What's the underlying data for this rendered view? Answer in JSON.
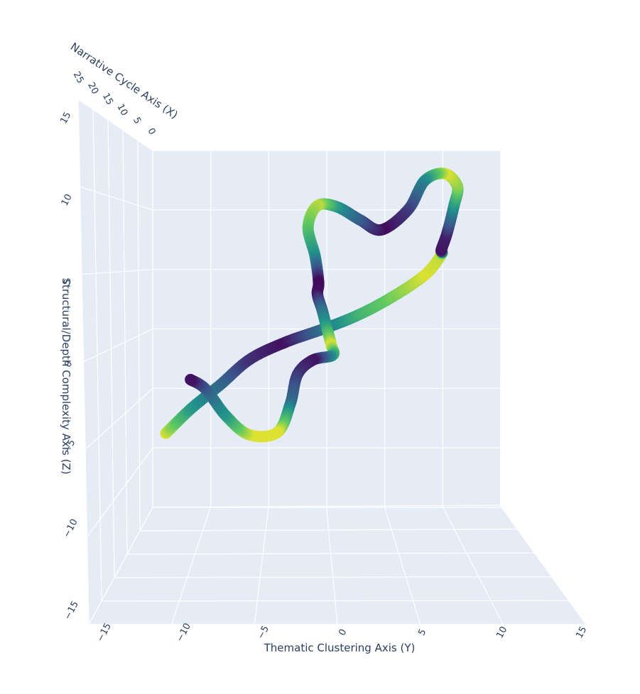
{
  "chart_data": {
    "type": "scatter3d",
    "title": "",
    "axes": {
      "x": {
        "label": "Narrative Cycle Axis (X)",
        "ticks": [
          "0",
          "5",
          "10",
          "15",
          "20",
          "25"
        ],
        "range": [
          0,
          25
        ]
      },
      "y": {
        "label": "Thematic Clustering Axis (Y)",
        "ticks": [
          "−15",
          "−10",
          "−5",
          "0",
          "5",
          "10",
          "15"
        ],
        "range": [
          -15,
          15
        ]
      },
      "z": {
        "label": "Structural/Depth Complexity Axis (Z)",
        "ticks": [
          "−15",
          "−10",
          "−5",
          "0",
          "5",
          "10",
          "15"
        ],
        "range": [
          -15,
          15
        ]
      }
    },
    "background_color": "#e5ecf6",
    "grid": true,
    "colorscale": "Viridis",
    "colors": {
      "viridis": [
        "#440154",
        "#3b528b",
        "#21918c",
        "#5ec962",
        "#fde725"
      ]
    },
    "series": [
      {
        "marker": "circle",
        "points": [
          {
            "x": 25,
            "y": -13.6,
            "z": -8.6,
            "c": 0.95
          },
          {
            "x": 25,
            "y": -11.5,
            "z": -6.6,
            "c": 0.55
          },
          {
            "x": 24,
            "y": -9.0,
            "z": -4.6,
            "c": 0.35
          },
          {
            "x": 22,
            "y": -6.5,
            "z": -2.5,
            "c": 0.15
          },
          {
            "x": 20,
            "y": -3.5,
            "z": -1.1,
            "c": 0.05
          },
          {
            "x": 18,
            "y": 0.0,
            "z": 0.1,
            "c": 0.4
          },
          {
            "x": 16,
            "y": 3.0,
            "z": 1.3,
            "c": 0.65
          },
          {
            "x": 14,
            "y": 6.0,
            "z": 2.9,
            "c": 0.8
          },
          {
            "x": 12,
            "y": 8.5,
            "z": 4.6,
            "c": 0.95
          },
          {
            "x": 10,
            "y": 9.8,
            "z": 6.2,
            "c": 0.9
          },
          {
            "x": 10,
            "y": 9.8,
            "z": 6.6,
            "c": 0.05
          },
          {
            "x": 9,
            "y": 10.3,
            "z": 8.0,
            "c": 0.1
          },
          {
            "x": 8,
            "y": 10.9,
            "z": 10.3,
            "c": 0.5
          },
          {
            "x": 7,
            "y": 11.2,
            "z": 11.9,
            "c": 0.8
          },
          {
            "x": 6,
            "y": 10.1,
            "z": 13.0,
            "c": 0.95
          },
          {
            "x": 5,
            "y": 8.4,
            "z": 12.4,
            "c": 0.5
          },
          {
            "x": 4,
            "y": 7.0,
            "z": 10.0,
            "c": 0.2
          },
          {
            "x": 4,
            "y": 4.7,
            "z": 8.3,
            "c": 0.03
          },
          {
            "x": 5,
            "y": 2.9,
            "z": 9.1,
            "c": 0.25
          },
          {
            "x": 6,
            "y": 0.9,
            "z": 10.2,
            "c": 0.5
          },
          {
            "x": 7,
            "y": -0.8,
            "z": 10.3,
            "c": 0.9
          },
          {
            "x": 7,
            "y": -1.6,
            "z": 8.5,
            "c": 0.75
          },
          {
            "x": 6,
            "y": -1.0,
            "z": 6.1,
            "c": 0.5
          },
          {
            "x": 6,
            "y": -0.7,
            "z": 3.9,
            "c": 0.03
          },
          {
            "x": 6,
            "y": -0.8,
            "z": 2.9,
            "c": 0.05
          },
          {
            "x": 7,
            "y": -0.4,
            "z": 1.6,
            "c": 0.35
          },
          {
            "x": 7,
            "y": 0.0,
            "z": 0.1,
            "c": 0.55
          },
          {
            "x": 8,
            "y": 0.4,
            "z": -1.4,
            "c": 0.95
          },
          {
            "x": 9,
            "y": 0.5,
            "z": -2.2,
            "c": 0.6
          },
          {
            "x": 10,
            "y": -1.2,
            "z": -2.6,
            "c": 0.05
          },
          {
            "x": 11,
            "y": -2.5,
            "z": -3.8,
            "c": 0.15
          },
          {
            "x": 12,
            "y": -3.1,
            "z": -6.2,
            "c": 0.35
          },
          {
            "x": 13,
            "y": -4.2,
            "z": -8.6,
            "c": 0.95
          },
          {
            "x": 14,
            "y": -6.6,
            "z": -8.8,
            "c": 0.95
          },
          {
            "x": 15,
            "y": -8.6,
            "z": -7.2,
            "c": 0.55
          },
          {
            "x": 16,
            "y": -10.3,
            "z": -5.0,
            "c": 0.3
          },
          {
            "x": 16,
            "y": -11.6,
            "z": -4.2,
            "c": 0.05
          }
        ]
      }
    ]
  }
}
